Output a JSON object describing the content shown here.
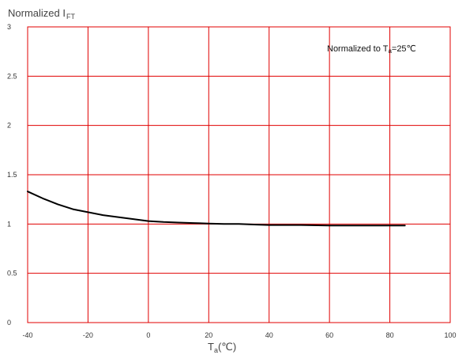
{
  "chart_data": {
    "type": "line",
    "ylabel": {
      "main": "Normalized I",
      "sub": "FT"
    },
    "xlabel": {
      "main": "T",
      "sub": "a",
      "rest": "(℃)"
    },
    "annotation": {
      "pre": "Normalized to T",
      "sub": "a",
      "post": "=25℃"
    },
    "xlim": [
      -40,
      100
    ],
    "ylim": [
      0,
      3
    ],
    "x_ticks": [
      -40,
      -20,
      0,
      20,
      40,
      60,
      80,
      100
    ],
    "y_ticks": [
      0,
      0.5,
      1,
      1.5,
      2,
      2.5,
      3
    ],
    "x_tick_labels": [
      "-40",
      "-20",
      "0",
      "20",
      "40",
      "60",
      "80",
      "100"
    ],
    "y_tick_labels": [
      "0",
      "0.5",
      "1",
      "1.5",
      "2",
      "2.5",
      "3"
    ],
    "grid": true,
    "grid_color": "#e00000",
    "series": [
      {
        "color": "#000000",
        "x": [
          -40,
          -35,
          -30,
          -25,
          -20,
          -15,
          -10,
          -5,
          0,
          5,
          10,
          15,
          20,
          25,
          30,
          35,
          40,
          50,
          60,
          70,
          80,
          85
        ],
        "y": [
          1.33,
          1.26,
          1.2,
          1.15,
          1.12,
          1.09,
          1.07,
          1.05,
          1.03,
          1.02,
          1.015,
          1.01,
          1.005,
          1.0,
          1.0,
          0.995,
          0.99,
          0.99,
          0.985,
          0.985,
          0.985,
          0.985
        ]
      }
    ]
  }
}
